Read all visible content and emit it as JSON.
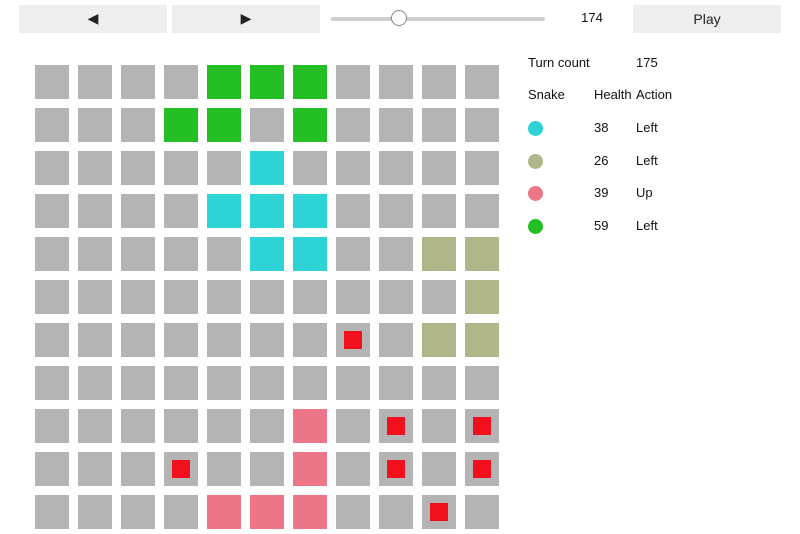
{
  "controls": {
    "prev_label": "◀",
    "next_label": "▶",
    "play_label": "Play",
    "slider_value": "174",
    "slider_fraction": 0.32
  },
  "info": {
    "turn_label": "Turn count",
    "turn_value": "175",
    "col_snake": "Snake",
    "col_health": "Health",
    "col_action": "Action",
    "snakes": [
      {
        "color": "#2ed3d6",
        "health": "38",
        "action": "Left"
      },
      {
        "color": "#b0b689",
        "health": "26",
        "action": "Left"
      },
      {
        "color": "#ec7588",
        "health": "39",
        "action": "Up"
      },
      {
        "color": "#23bf24",
        "health": "59",
        "action": "Left"
      }
    ]
  },
  "board": {
    "cols": 11,
    "rows": 11,
    "empty_color": "#b4b4b4",
    "food_color": "#f2101e",
    "snake_cells": [
      [
        [
          5,
          2
        ],
        [
          5,
          3
        ],
        [
          6,
          3
        ],
        [
          5,
          4
        ],
        [
          6,
          4
        ],
        [
          4,
          3
        ]
      ],
      [
        [
          10,
          4
        ],
        [
          9,
          4
        ],
        [
          10,
          5
        ],
        [
          10,
          6
        ],
        [
          9,
          6
        ]
      ],
      [
        [
          6,
          8
        ],
        [
          6,
          9
        ],
        [
          6,
          10
        ],
        [
          5,
          10
        ],
        [
          4,
          10
        ]
      ],
      [
        [
          4,
          0
        ],
        [
          5,
          0
        ],
        [
          6,
          0
        ],
        [
          3,
          1
        ],
        [
          4,
          1
        ],
        [
          6,
          1
        ]
      ]
    ],
    "food": [
      [
        7,
        6
      ],
      [
        8,
        8
      ],
      [
        10,
        8
      ],
      [
        3,
        9
      ],
      [
        8,
        9
      ],
      [
        10,
        9
      ],
      [
        9,
        10
      ]
    ]
  }
}
